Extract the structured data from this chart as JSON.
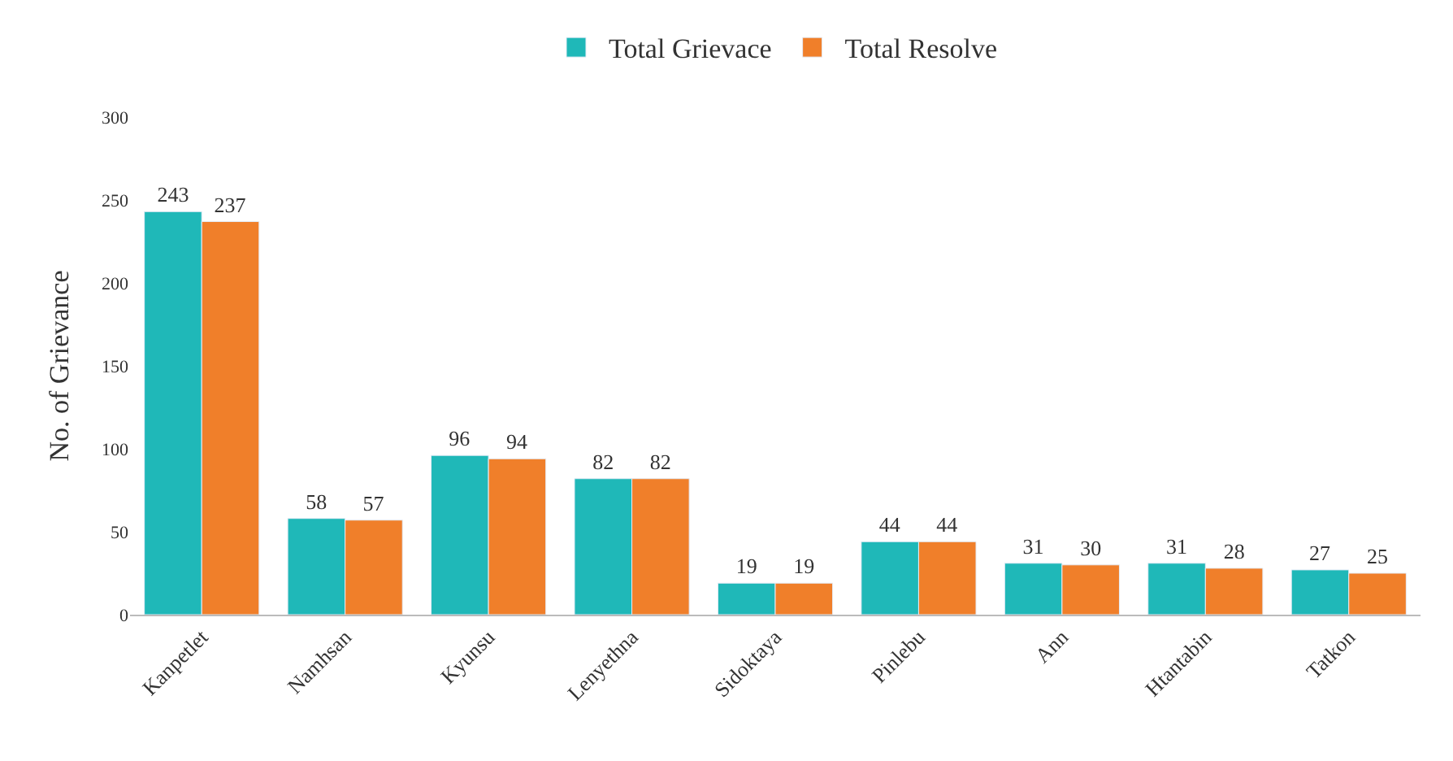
{
  "chart_data": {
    "type": "bar",
    "ylabel": "No. of Grievance",
    "categories": [
      "Kanpetlet",
      "Namhsan",
      "Kyunsu",
      "Lenyethna",
      "Sidoktaya",
      "Pinlebu",
      "Ann",
      "Htantabin",
      "Tatkon"
    ],
    "series": [
      {
        "name": "Total Grievace",
        "color": "#1fb8b8",
        "values": [
          243,
          58,
          96,
          82,
          19,
          44,
          31,
          31,
          27
        ]
      },
      {
        "name": "Total Resolve",
        "color": "#f07f2a",
        "values": [
          237,
          57,
          94,
          82,
          19,
          44,
          30,
          28,
          25
        ]
      }
    ],
    "ylim": [
      0,
      300
    ],
    "yticks": [
      0,
      50,
      100,
      150,
      200,
      250,
      300
    ],
    "data_labels": true,
    "grid": false,
    "legend": "top"
  }
}
